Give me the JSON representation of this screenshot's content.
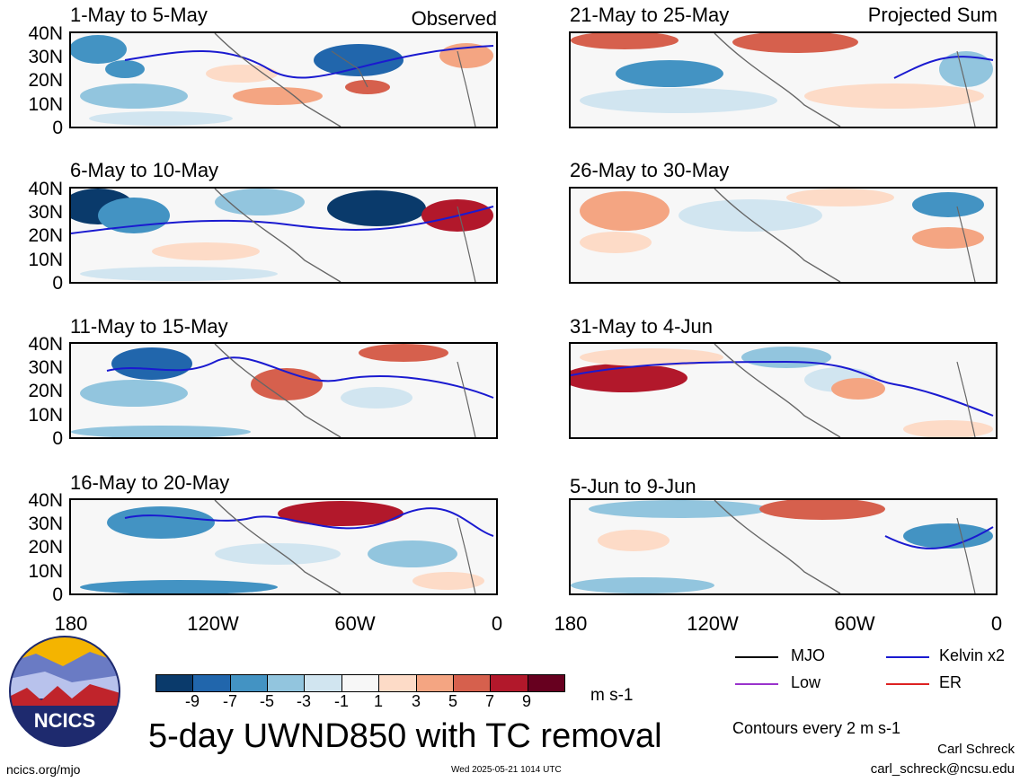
{
  "panels": [
    {
      "title": "1-May to 5-May",
      "corner": "Observed"
    },
    {
      "title": "6-May to 10-May",
      "corner": ""
    },
    {
      "title": "11-May to 15-May",
      "corner": ""
    },
    {
      "title": "16-May to 20-May",
      "corner": ""
    },
    {
      "title": "21-May to 25-May",
      "corner": "Projected Sum"
    },
    {
      "title": "26-May to 30-May",
      "corner": ""
    },
    {
      "title": "31-May to 4-Jun",
      "corner": ""
    },
    {
      "title": "5-Jun to 9-Jun",
      "corner": ""
    }
  ],
  "y_ticks": [
    "40N",
    "30N",
    "20N",
    "10N",
    "0"
  ],
  "x_ticks": [
    "180",
    "120W",
    "60W",
    "0"
  ],
  "legend": {
    "mjo": {
      "label": "MJO",
      "color": "#000000"
    },
    "kelvin": {
      "label": "Kelvin x2",
      "color": "#1a1ad0"
    },
    "low": {
      "label": "Low",
      "color": "#9933cc"
    },
    "er": {
      "label": "ER",
      "color": "#dd2222"
    },
    "contours_note": "Contours every 2 m s-1"
  },
  "colorbar": {
    "tick_labels": [
      "-9",
      "-7",
      "-5",
      "-3",
      "-1",
      "1",
      "3",
      "5",
      "7",
      "9"
    ],
    "colors": [
      "#0a3a6b",
      "#2166ac",
      "#4393c3",
      "#92c5de",
      "#d1e5f0",
      "#f7f7f7",
      "#fddbc7",
      "#f4a582",
      "#d6604d",
      "#b2182b",
      "#67001f"
    ],
    "unit": "m s-1"
  },
  "main_title": "5-day UWND850 with TC removal",
  "logo_text": "NCICS",
  "footer": {
    "url": "ncics.org/mjo",
    "timestamp": "Wed 2025-05-21 1014 UTC",
    "author": "Carl Schreck",
    "email": "carl_schreck@ncsu.edu"
  }
}
